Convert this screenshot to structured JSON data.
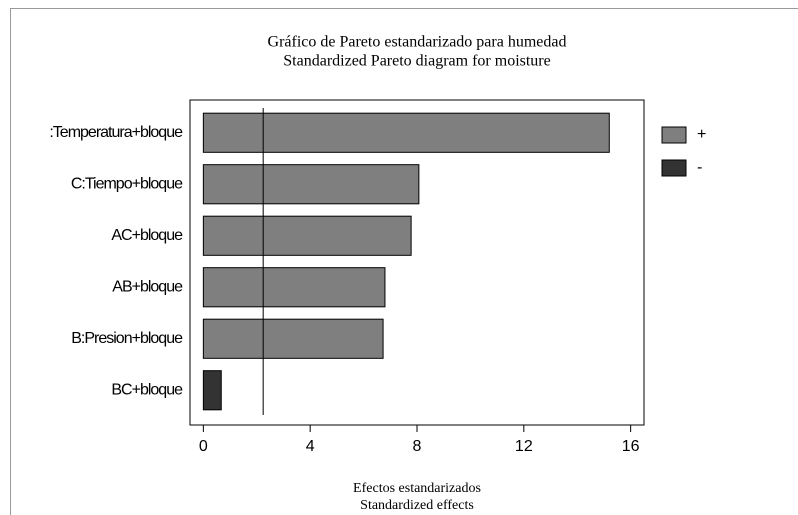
{
  "chart_data": {
    "type": "hbar",
    "title": [
      "Gráfico de Pareto estandarizado para humedad",
      "Standardized Pareto diagram for moisture"
    ],
    "xlabel": [
      "Efectos estandarizados",
      "Standardized effects"
    ],
    "categories": [
      ":Temperatura+bloque",
      "C:Tiempo+bloque",
      "AC+bloque",
      "AB+bloque",
      "B:Presion+bloque",
      "BC+bloque"
    ],
    "series": [
      {
        "name": "+",
        "color": "#7f7f7f",
        "values": [
          15.2,
          8.07,
          7.78,
          6.8,
          6.73,
          null
        ]
      },
      {
        "name": "-",
        "color": "#333333",
        "values": [
          null,
          null,
          null,
          null,
          null,
          0.67
        ]
      }
    ],
    "reference_line": 2.24,
    "xlim": [
      -0.5,
      16.5
    ],
    "xticks": [
      0,
      4,
      8,
      12,
      16
    ],
    "legend": "right"
  }
}
